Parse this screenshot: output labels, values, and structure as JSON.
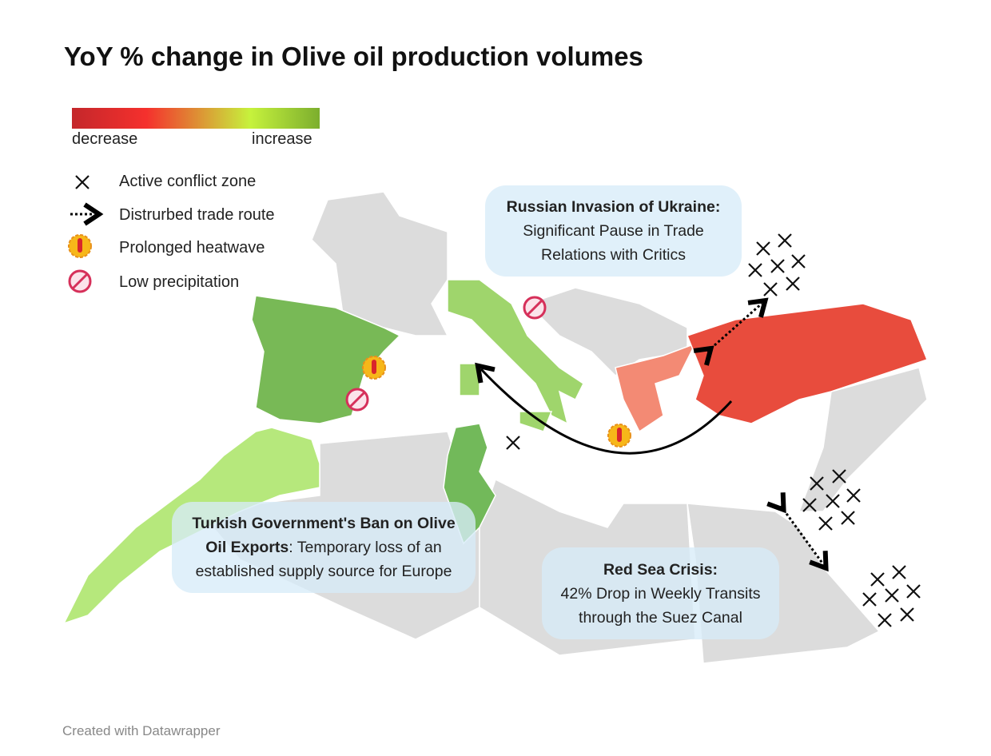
{
  "header": {
    "title": "YoY % change in Olive oil production volumes"
  },
  "legend": {
    "scale": {
      "low": "decrease",
      "high": "increase"
    },
    "items": [
      {
        "label": "Active conflict zone"
      },
      {
        "label": "Distrurbed trade route"
      },
      {
        "label": "Prolonged heatwave"
      },
      {
        "label": "Low precipitation"
      }
    ]
  },
  "annotations": [
    {
      "title": "Russian Invasion of Ukraine:",
      "text": "Significant Pause in Trade Relations with Critics"
    },
    {
      "title": "Turkish Government's Ban on Olive Oil Exports",
      "text": ": Temporary loss of an established supply source for Europe"
    },
    {
      "title": "Red Sea Crisis:",
      "text": "42% Drop in Weekly Transits through the Suez Canal"
    }
  ],
  "footer": {
    "credit": "Created with Datawrapper"
  }
}
